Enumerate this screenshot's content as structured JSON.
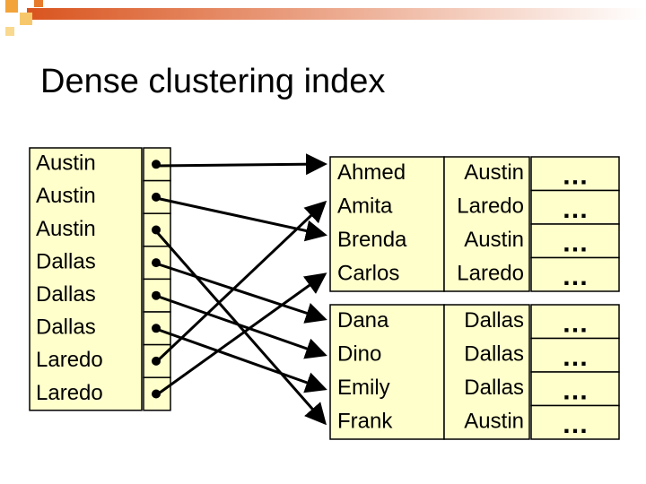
{
  "title": "Dense clustering index",
  "index": {
    "keys": [
      "Austin",
      "Austin",
      "Austin",
      "Dallas",
      "Dallas",
      "Dallas",
      "Laredo",
      "Laredo"
    ]
  },
  "blocks": [
    {
      "rows": [
        [
          "Ahmed",
          "Austin",
          "…"
        ],
        [
          "Amita",
          "Laredo",
          "…"
        ],
        [
          "Brenda",
          "Austin",
          "…"
        ],
        [
          "Carlos",
          "Laredo",
          "…"
        ]
      ]
    },
    {
      "rows": [
        [
          "Dana",
          "Dallas",
          "…"
        ],
        [
          "Dino",
          "Dallas",
          "…"
        ],
        [
          "Emily",
          "Dallas",
          "…"
        ],
        [
          "Frank",
          "Austin",
          "…"
        ]
      ]
    }
  ]
}
